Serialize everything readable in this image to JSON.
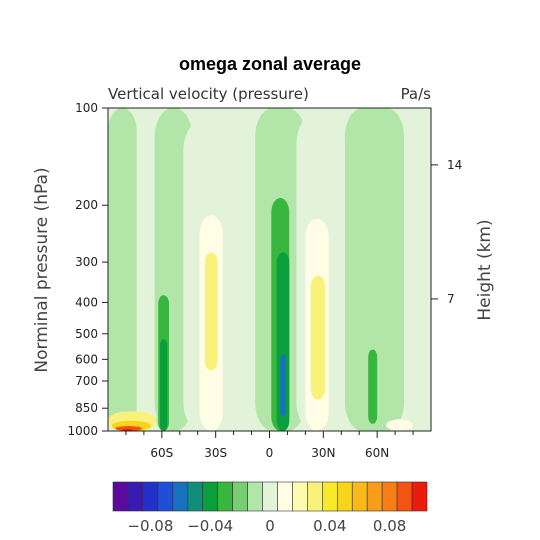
{
  "chart_data": {
    "type": "heatmap",
    "title": "omega zonal average",
    "subtitle_left": "Vertical velocity (pressure)",
    "subtitle_right": "Pa/s",
    "ylabel": "Norminal pressure (hPa)",
    "ylabel_right": "Height (km)",
    "x_ticks": [
      {
        "lat": -60,
        "label": "60S"
      },
      {
        "lat": -30,
        "label": "30S"
      },
      {
        "lat": 0,
        "label": "0"
      },
      {
        "lat": 30,
        "label": "30N"
      },
      {
        "lat": 60,
        "label": "60N"
      }
    ],
    "x_minor_ticks": [
      -80,
      -70,
      -50,
      -40,
      -20,
      -10,
      10,
      20,
      40,
      50,
      70,
      80
    ],
    "xlim": [
      -90,
      90
    ],
    "y_ticks": [
      {
        "p": 100,
        "label": "100"
      },
      {
        "p": 200,
        "label": "200"
      },
      {
        "p": 300,
        "label": "300"
      },
      {
        "p": 400,
        "label": "400"
      },
      {
        "p": 500,
        "label": "500"
      },
      {
        "p": 600,
        "label": "600"
      },
      {
        "p": 700,
        "label": "700"
      },
      {
        "p": 850,
        "label": "850"
      },
      {
        "p": 1000,
        "label": "1000"
      }
    ],
    "ylim": [
      1000,
      100
    ],
    "y_scale": "log",
    "y_right_ticks": [
      {
        "p": 150,
        "label": "14"
      },
      {
        "p": 390,
        "label": "7"
      }
    ],
    "colorbar": {
      "levels": [
        -0.1,
        -0.09,
        -0.08,
        -0.07,
        -0.06,
        -0.05,
        -0.04,
        -0.03,
        -0.02,
        -0.01,
        0,
        0.01,
        0.02,
        0.03,
        0.04,
        0.05,
        0.06,
        0.07,
        0.08,
        0.09,
        0.1
      ],
      "colors": [
        "#5c0a9e",
        "#3a1ab4",
        "#2431c9",
        "#1f4fd6",
        "#1671c0",
        "#0f8f7a",
        "#0a9e3c",
        "#38b63d",
        "#77cf70",
        "#b2e6a8",
        "#e2f3da",
        "#fffde6",
        "#fdfbb0",
        "#f9f27a",
        "#f6ea2a",
        "#f8d41c",
        "#f9b91b",
        "#f89d1b",
        "#f77d17",
        "#f25512",
        "#ec1c0c"
      ],
      "labels": [
        {
          "value": -0.08,
          "label": "−0.08"
        },
        {
          "value": -0.04,
          "label": "−0.04"
        },
        {
          "value": 0,
          "label": "0"
        },
        {
          "value": 0.04,
          "label": "0.04"
        },
        {
          "value": 0.08,
          "label": "0.08"
        }
      ]
    },
    "regions": [
      {
        "lat": [
          -90,
          90
        ],
        "p": [
          100,
          1000
        ],
        "value": 0.005
      },
      {
        "lat": [
          -90,
          -74
        ],
        "p": [
          100,
          1000
        ],
        "value": -0.005
      },
      {
        "lat": [
          -64,
          -43
        ],
        "p": [
          100,
          1000
        ],
        "value": -0.005
      },
      {
        "lat": [
          -8,
          20
        ],
        "p": [
          100,
          1000
        ],
        "value": -0.005
      },
      {
        "lat": [
          42,
          75
        ],
        "p": [
          100,
          1000
        ],
        "value": -0.005
      },
      {
        "lat": [
          -48,
          -26
        ],
        "p": [
          110,
          1000
        ],
        "value": 0.005
      },
      {
        "lat": [
          15,
          42
        ],
        "p": [
          105,
          1000
        ],
        "value": 0.005
      },
      {
        "lat": [
          -63,
          -55
        ],
        "p": [
          245,
          1000
        ],
        "value": -0.015
      },
      {
        "lat": [
          -62,
          -56
        ],
        "p": [
          380,
          1000
        ],
        "value": -0.025
      },
      {
        "lat": [
          -61,
          -57
        ],
        "p": [
          520,
          1000
        ],
        "value": -0.035
      },
      {
        "lat": [
          -39,
          -26
        ],
        "p": [
          215,
          1000
        ],
        "value": 0.015
      },
      {
        "lat": [
          -36,
          -29
        ],
        "p": [
          280,
          650
        ],
        "value": 0.025
      },
      {
        "lat": [
          -5,
          10
        ],
        "p": [
          160,
          1000
        ],
        "value": -0.015
      },
      {
        "lat": [
          1,
          11
        ],
        "p": [
          190,
          1000
        ],
        "value": -0.025
      },
      {
        "lat": [
          4,
          11
        ],
        "p": [
          280,
          1000
        ],
        "value": -0.035
      },
      {
        "lat": [
          5,
          10
        ],
        "p": [
          420,
          960
        ],
        "value": -0.045
      },
      {
        "lat": [
          6,
          9
        ],
        "p": [
          580,
          900
        ],
        "value": -0.055
      },
      {
        "lat": [
          20,
          33
        ],
        "p": [
          220,
          1000
        ],
        "value": 0.015
      },
      {
        "lat": [
          23,
          31
        ],
        "p": [
          330,
          800
        ],
        "value": 0.025
      },
      {
        "lat": [
          53,
          62
        ],
        "p": [
          400,
          1000
        ],
        "value": -0.015
      },
      {
        "lat": [
          55,
          60
        ],
        "p": [
          560,
          950
        ],
        "value": -0.025
      },
      {
        "lat": [
          -90,
          -63
        ],
        "p": [
          870,
          1000
        ],
        "value": 0.025
      },
      {
        "lat": [
          -88,
          -66
        ],
        "p": [
          930,
          1000
        ],
        "value": 0.055
      },
      {
        "lat": [
          -86,
          -71
        ],
        "p": [
          965,
          1000
        ],
        "value": 0.085
      },
      {
        "lat": [
          -82,
          -76
        ],
        "p": [
          985,
          1000
        ],
        "value": 0.1
      },
      {
        "lat": [
          65,
          80
        ],
        "p": [
          920,
          1000
        ],
        "value": 0.015
      }
    ]
  }
}
